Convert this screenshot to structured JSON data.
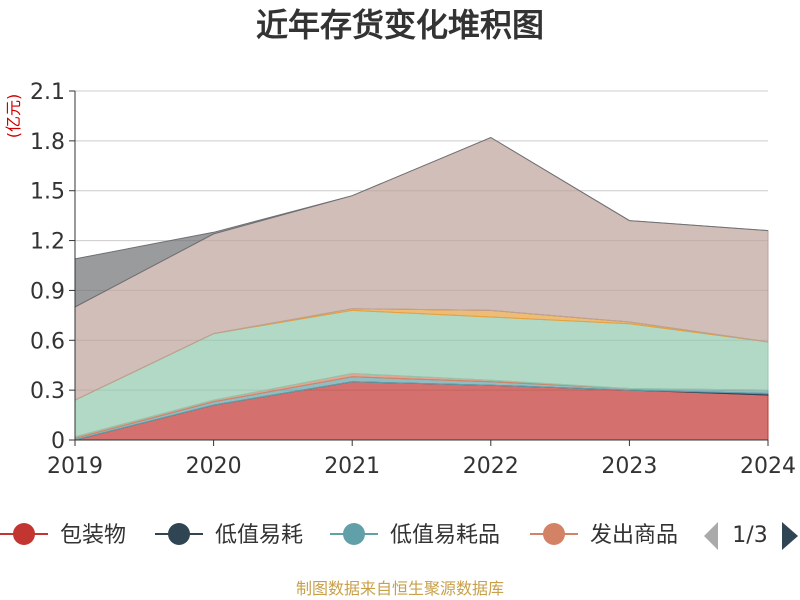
{
  "title": "近年存货变化堆积图",
  "source_text": "制图数据来自恒生聚源数据库",
  "legend_page": "1/3",
  "chart_data": {
    "type": "area",
    "stacked": true,
    "title": "近年存货变化堆积图",
    "ylabel": "(亿元)",
    "xlabel": "",
    "categories": [
      "2019",
      "2020",
      "2021",
      "2022",
      "2023",
      "2024"
    ],
    "ylim": [
      0,
      2.1
    ],
    "yticks": [
      0,
      0.3,
      0.6,
      0.9,
      1.2,
      1.5,
      1.8,
      2.1
    ],
    "grid": true,
    "legend_position": "bottom",
    "series": [
      {
        "name": "包装物",
        "color": "#c23531",
        "values": [
          0.0,
          0.21,
          0.35,
          0.33,
          0.3,
          0.27
        ]
      },
      {
        "name": "低值易耗",
        "color": "#2f4554",
        "values": [
          0.0,
          0.0,
          0.0,
          0.0,
          0.0,
          0.01
        ]
      },
      {
        "name": "低值易耗品",
        "color": "#61a0a8",
        "values": [
          0.01,
          0.02,
          0.03,
          0.02,
          0.01,
          0.02
        ]
      },
      {
        "name": "发出商品",
        "color": "#d48265",
        "values": [
          0.01,
          0.01,
          0.02,
          0.01,
          0.0,
          0.0
        ]
      },
      {
        "name": "",
        "color": "#91c7ae",
        "values": [
          0.22,
          0.4,
          0.38,
          0.38,
          0.39,
          0.29
        ]
      },
      {
        "name": "",
        "color": "#e7a03c",
        "values": [
          0.0,
          0.0,
          0.01,
          0.04,
          0.01,
          0.0
        ]
      },
      {
        "name": "",
        "color": "#ca8622",
        "values": [
          0.0,
          0.0,
          0.0,
          0.0,
          0.0,
          0.0
        ]
      },
      {
        "name": "",
        "color": "#bda29a",
        "values": [
          0.56,
          0.6,
          0.68,
          1.04,
          0.61,
          0.67
        ]
      },
      {
        "name": "",
        "color": "#6e7074",
        "values": [
          0.29,
          0.01,
          0.0,
          0.0,
          0.0,
          0.0
        ]
      }
    ],
    "legend_visible": [
      "包装物",
      "低值易耗",
      "低值易耗品",
      "发出商品"
    ]
  }
}
